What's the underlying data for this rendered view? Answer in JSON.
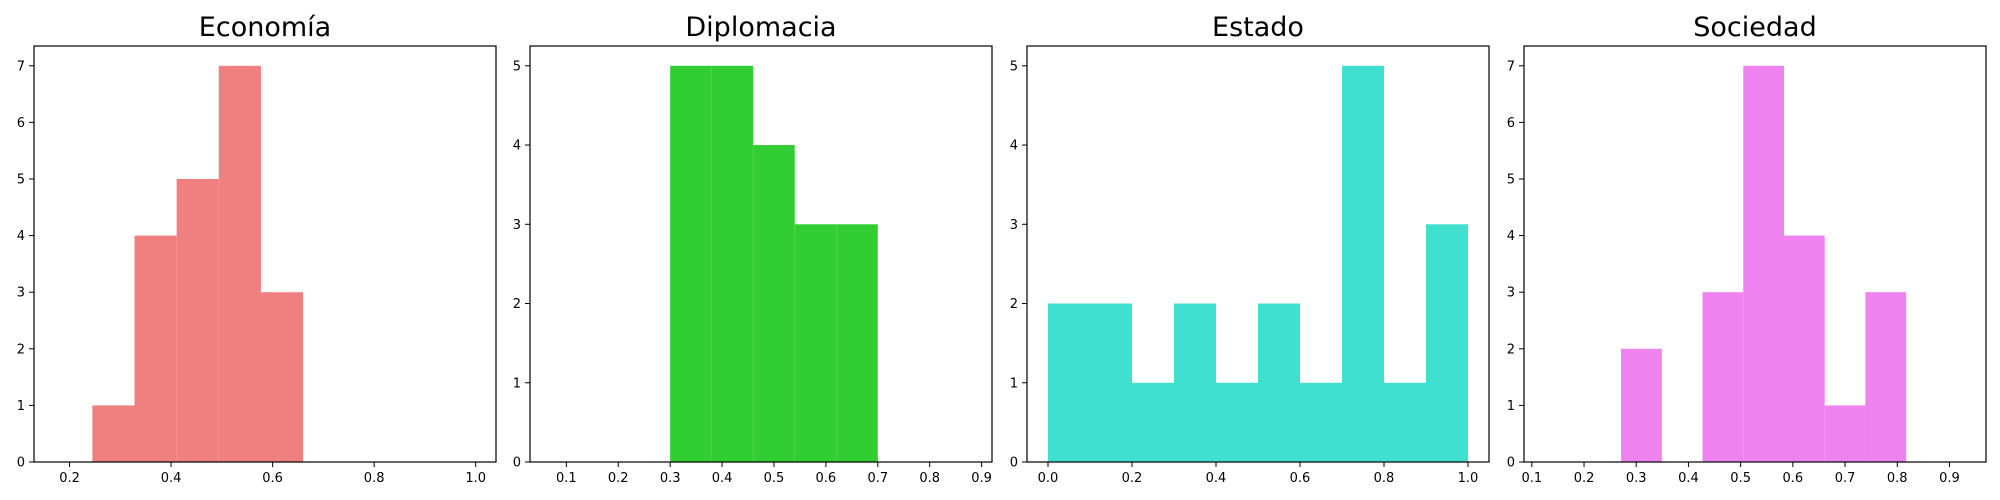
{
  "chart_data": [
    {
      "type": "bar",
      "title": "Economía",
      "color": "#f08080",
      "xlim": [
        0.13,
        1.04
      ],
      "ylim": [
        0,
        7.35
      ],
      "xticks": [
        0.2,
        0.4,
        0.6,
        0.8,
        1.0
      ],
      "xtick_labels": [
        "0.2",
        "0.4",
        "0.6",
        "0.8",
        "1.0"
      ],
      "yticks": [
        0,
        1,
        2,
        3,
        4,
        5,
        6,
        7
      ],
      "ytick_labels": [
        "0",
        "1",
        "2",
        "3",
        "4",
        "5",
        "6",
        "7"
      ],
      "bins": [
        [
          0.245,
          0.328
        ],
        [
          0.328,
          0.411
        ],
        [
          0.411,
          0.494
        ],
        [
          0.494,
          0.577
        ],
        [
          0.577,
          0.66
        ]
      ],
      "counts": [
        1,
        4,
        5,
        7,
        3
      ]
    },
    {
      "type": "bar",
      "title": "Diplomacia",
      "color": "#32cd32",
      "xlim": [
        0.03,
        0.92
      ],
      "ylim": [
        0,
        5.25
      ],
      "xticks": [
        0.1,
        0.2,
        0.3,
        0.4,
        0.5,
        0.6,
        0.7,
        0.8,
        0.9
      ],
      "xtick_labels": [
        "0.1",
        "0.2",
        "0.3",
        "0.4",
        "0.5",
        "0.6",
        "0.7",
        "0.8",
        "0.9"
      ],
      "yticks": [
        0,
        1,
        2,
        3,
        4,
        5
      ],
      "ytick_labels": [
        "0",
        "1",
        "2",
        "3",
        "4",
        "5"
      ],
      "bins": [
        [
          0.3,
          0.38
        ],
        [
          0.38,
          0.46
        ],
        [
          0.46,
          0.54
        ],
        [
          0.54,
          0.62
        ],
        [
          0.62,
          0.7
        ]
      ],
      "counts": [
        5,
        5,
        4,
        3,
        3
      ]
    },
    {
      "type": "bar",
      "title": "Estado",
      "color": "#40e0d0",
      "xlim": [
        -0.05,
        1.05
      ],
      "ylim": [
        0,
        5.25
      ],
      "xticks": [
        0.0,
        0.2,
        0.4,
        0.6,
        0.8,
        1.0
      ],
      "xtick_labels": [
        "0.0",
        "0.2",
        "0.4",
        "0.6",
        "0.8",
        "1.0"
      ],
      "yticks": [
        0,
        1,
        2,
        3,
        4,
        5
      ],
      "ytick_labels": [
        "0",
        "1",
        "2",
        "3",
        "4",
        "5"
      ],
      "bins": [
        [
          0.0,
          0.1
        ],
        [
          0.1,
          0.2
        ],
        [
          0.2,
          0.3
        ],
        [
          0.3,
          0.4
        ],
        [
          0.4,
          0.5
        ],
        [
          0.5,
          0.6
        ],
        [
          0.6,
          0.7
        ],
        [
          0.7,
          0.8
        ],
        [
          0.8,
          0.9
        ],
        [
          0.9,
          1.0
        ]
      ],
      "counts": [
        2,
        2,
        1,
        2,
        1,
        2,
        1,
        5,
        1,
        3
      ]
    },
    {
      "type": "bar",
      "title": "Sociedad",
      "color": "#ee82ee",
      "xlim": [
        0.085,
        0.97
      ],
      "ylim": [
        0,
        7.35
      ],
      "xticks": [
        0.1,
        0.2,
        0.3,
        0.4,
        0.5,
        0.6,
        0.7,
        0.8,
        0.9
      ],
      "xtick_labels": [
        "0.1",
        "0.2",
        "0.3",
        "0.4",
        "0.5",
        "0.6",
        "0.7",
        "0.8",
        "0.9"
      ],
      "yticks": [
        0,
        1,
        2,
        3,
        4,
        5,
        6,
        7
      ],
      "ytick_labels": [
        "0",
        "1",
        "2",
        "3",
        "4",
        "5",
        "6",
        "7"
      ],
      "bins": [
        [
          0.271,
          0.349
        ],
        [
          0.349,
          0.427
        ],
        [
          0.427,
          0.505
        ],
        [
          0.505,
          0.583
        ],
        [
          0.583,
          0.661
        ],
        [
          0.661,
          0.739
        ],
        [
          0.739,
          0.817
        ]
      ],
      "counts": [
        2,
        0,
        3,
        7,
        4,
        1,
        3
      ]
    }
  ]
}
